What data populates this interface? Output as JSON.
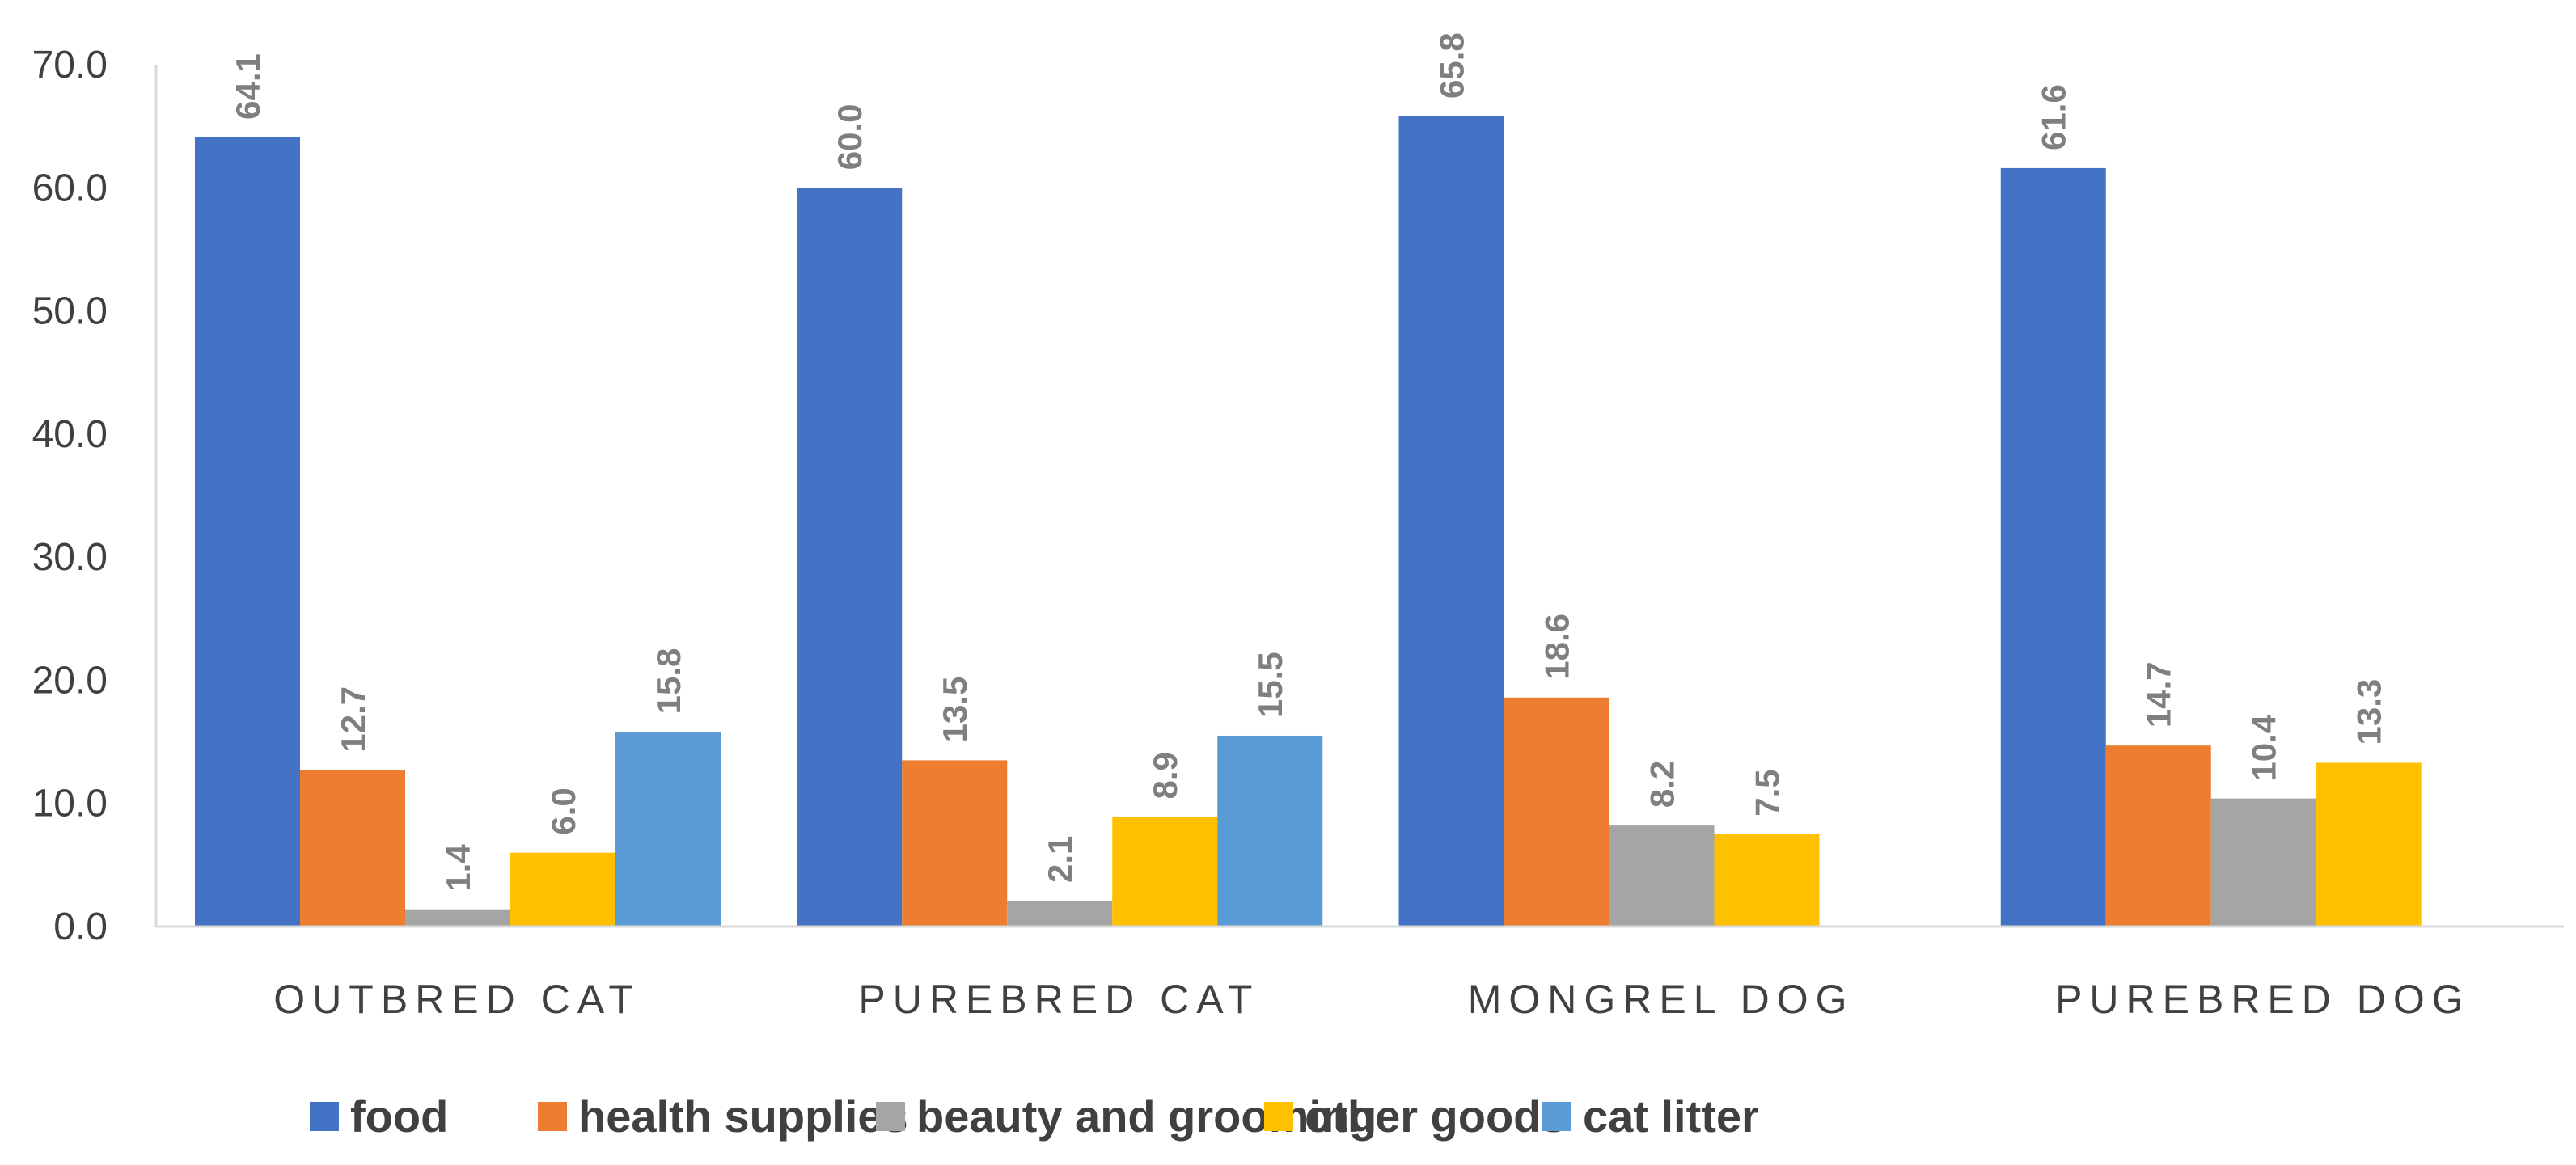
{
  "chart_data": {
    "type": "bar",
    "title": "",
    "xlabel": "",
    "ylabel": "",
    "ylim": [
      0,
      70
    ],
    "yticks": [
      "0.0",
      "10.0",
      "20.0",
      "30.0",
      "40.0",
      "50.0",
      "60.0",
      "70.0"
    ],
    "grid": false,
    "legend_position": "bottom",
    "categories": [
      "OUTBRED CAT",
      "PUREBRED CAT",
      "MONGREL DOG",
      "PUREBRED DOG"
    ],
    "series": [
      {
        "name": "food",
        "color": "#4472C4",
        "values": [
          64.1,
          60.0,
          65.8,
          61.6
        ],
        "labels": [
          "64.1",
          "60.0",
          "65.8",
          "61.6"
        ]
      },
      {
        "name": "health supplies",
        "color": "#ED7D31",
        "values": [
          12.7,
          13.5,
          18.6,
          14.7
        ],
        "labels": [
          "12.7",
          "13.5",
          "18.6",
          "14.7"
        ]
      },
      {
        "name": "beauty and grooming",
        "color": "#A5A5A5",
        "values": [
          1.4,
          2.1,
          8.2,
          10.4
        ],
        "labels": [
          "1.4",
          "2.1",
          "8.2",
          "10.4"
        ]
      },
      {
        "name": "other goods",
        "color": "#FFC000",
        "values": [
          6.0,
          8.9,
          7.5,
          13.3
        ],
        "labels": [
          "6.0",
          "8.9",
          "7.5",
          "13.3"
        ]
      },
      {
        "name": "cat litter",
        "color": "#5B9BD5",
        "values": [
          15.8,
          15.5,
          null,
          null
        ],
        "labels": [
          "15.8",
          "15.5",
          null,
          null
        ]
      }
    ]
  }
}
